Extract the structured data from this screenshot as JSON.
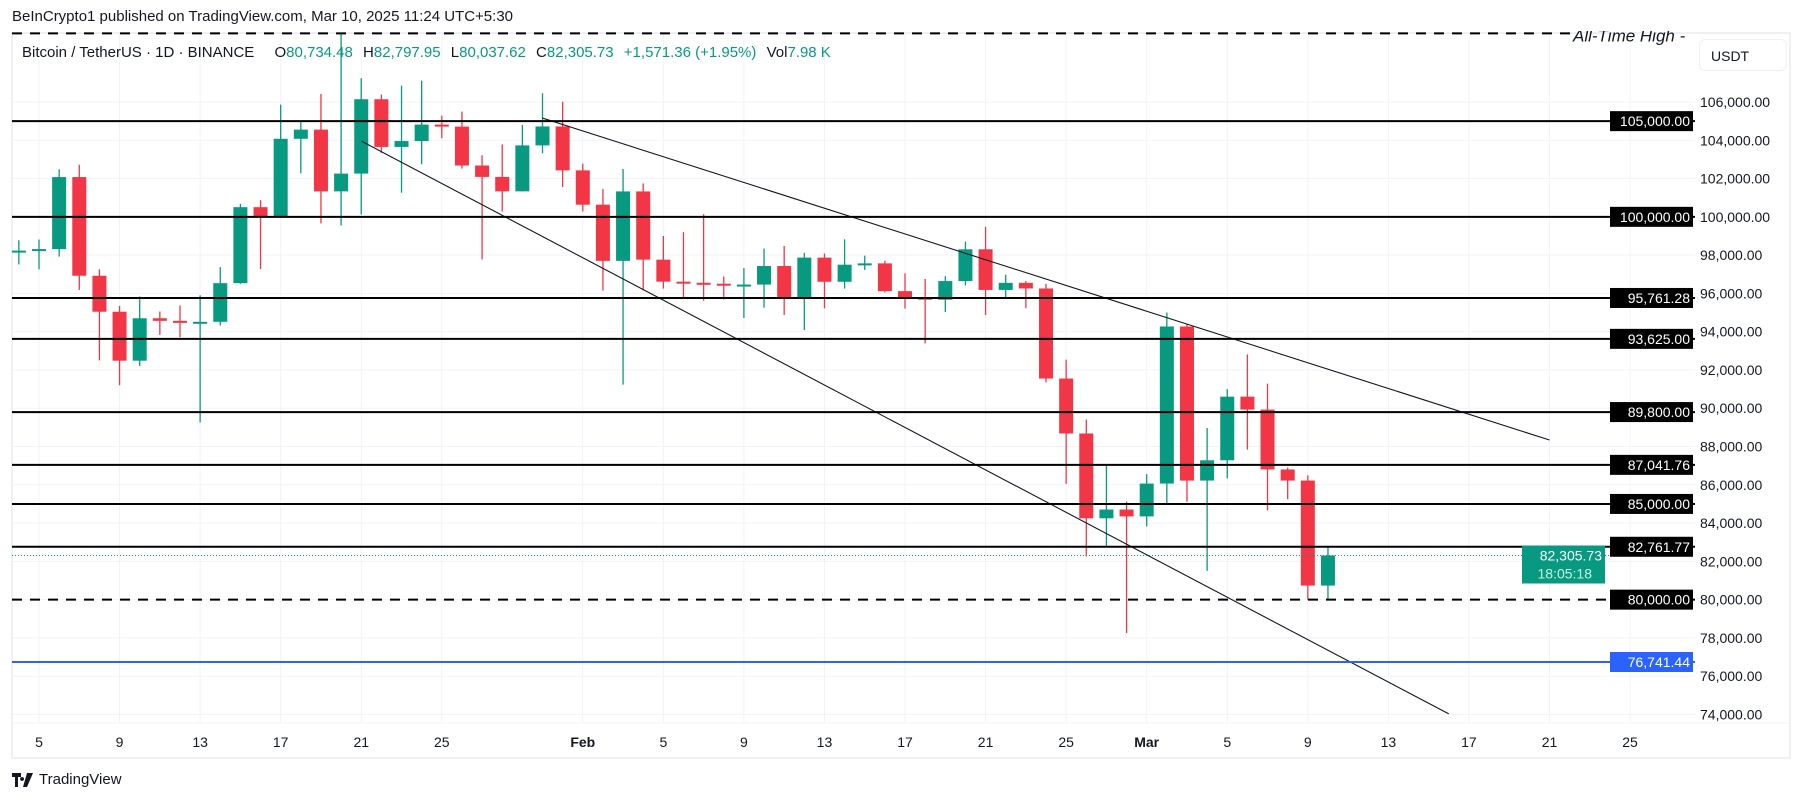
{
  "published": "BeInCrypto1 published on TradingView.com, Mar 10, 2025 11:24 UTC+5:30",
  "legend": {
    "symbol": "Bitcoin / TetherUS · 1D · BINANCE",
    "o_label": "O",
    "o": "80,734.48",
    "h_label": "H",
    "h": "82,797.95",
    "l_label": "L",
    "l": "80,037.62",
    "c_label": "C",
    "c": "82,305.73",
    "change": "+1,571.36 (+1.95%)",
    "vol_label": "Vol",
    "vol": "7.98 K"
  },
  "currency": "USDT",
  "brand": "TradingView",
  "colors": {
    "up": "#089981",
    "down": "#f23645",
    "support_blue": "#2962ff",
    "level": "#000000"
  },
  "chart_data": {
    "type": "candlestick",
    "title": "",
    "ylim": [
      73000,
      110000
    ],
    "grid": true,
    "y_ticks": [
      74000,
      76000,
      78000,
      80000,
      82000,
      84000,
      86000,
      88000,
      90000,
      92000,
      94000,
      96000,
      98000,
      100000,
      102000,
      104000,
      106000
    ],
    "y_tick_labels": [
      "74,000.00",
      "76,000.00",
      "78,000.00",
      "80,000.00",
      "82,000.00",
      "84,000.00",
      "86,000.00",
      "88,000.00",
      "90,000.00",
      "92,000.00",
      "94,000.00",
      "96,000.00",
      "98,000.00",
      "100,000.00",
      "102,000.00",
      "104,000.00",
      "106,000.00"
    ],
    "x_ticks": [
      {
        "date": "2025-01-05",
        "label": "5"
      },
      {
        "date": "2025-01-09",
        "label": "9"
      },
      {
        "date": "2025-01-13",
        "label": "13"
      },
      {
        "date": "2025-01-17",
        "label": "17"
      },
      {
        "date": "2025-01-21",
        "label": "21"
      },
      {
        "date": "2025-01-25",
        "label": "25"
      },
      {
        "date": "2025-02-01",
        "label": "Feb",
        "bold": true
      },
      {
        "date": "2025-02-05",
        "label": "5"
      },
      {
        "date": "2025-02-09",
        "label": "9"
      },
      {
        "date": "2025-02-13",
        "label": "13"
      },
      {
        "date": "2025-02-17",
        "label": "17"
      },
      {
        "date": "2025-02-21",
        "label": "21"
      },
      {
        "date": "2025-02-25",
        "label": "25"
      },
      {
        "date": "2025-03-01",
        "label": "Mar",
        "bold": true
      },
      {
        "date": "2025-03-05",
        "label": "5"
      },
      {
        "date": "2025-03-09",
        "label": "9"
      },
      {
        "date": "2025-03-13",
        "label": "13"
      },
      {
        "date": "2025-03-17",
        "label": "17"
      },
      {
        "date": "2025-03-21",
        "label": "21"
      },
      {
        "date": "2025-03-25",
        "label": "25"
      }
    ],
    "candles": [
      [
        "2025-01-04",
        98134,
        98778,
        97514,
        98236
      ],
      [
        "2025-01-05",
        98236,
        98813,
        97258,
        98314
      ],
      [
        "2025-01-06",
        98314,
        102482,
        97926,
        102078
      ],
      [
        "2025-01-07",
        102078,
        102724,
        96181,
        96922
      ],
      [
        "2025-01-08",
        96923,
        97259,
        92500,
        95043
      ],
      [
        "2025-01-09",
        95043,
        95349,
        91203,
        92484
      ],
      [
        "2025-01-10",
        92484,
        95837,
        92206,
        94701
      ],
      [
        "2025-01-11",
        94701,
        95050,
        93831,
        94566
      ],
      [
        "2025-01-12",
        94566,
        95375,
        93712,
        94488
      ],
      [
        "2025-01-13",
        94488,
        95900,
        89256,
        94516
      ],
      [
        "2025-01-14",
        94517,
        97371,
        94322,
        96534
      ],
      [
        "2025-01-15",
        96535,
        100681,
        96500,
        100505
      ],
      [
        "2025-01-16",
        100505,
        100873,
        97268,
        99988
      ],
      [
        "2025-01-17",
        99988,
        105865,
        99950,
        104078
      ],
      [
        "2025-01-18",
        104078,
        104988,
        102277,
        104557
      ],
      [
        "2025-01-19",
        104557,
        106422,
        99651,
        101331
      ],
      [
        "2025-01-20",
        101331,
        109588,
        99550,
        102260
      ],
      [
        "2025-01-21",
        102260,
        107240,
        100119,
        106144
      ],
      [
        "2025-01-22",
        106144,
        106394,
        103339,
        103653
      ],
      [
        "2025-01-23",
        103653,
        106850,
        101262,
        103960
      ],
      [
        "2025-01-24",
        103960,
        107120,
        102750,
        104820
      ],
      [
        "2025-01-25",
        104820,
        105286,
        104106,
        104714
      ],
      [
        "2025-01-26",
        104713,
        105500,
        102520,
        102682
      ],
      [
        "2025-01-27",
        102682,
        103221,
        97777,
        102087
      ],
      [
        "2025-01-28",
        102087,
        103784,
        100273,
        101332
      ],
      [
        "2025-01-29",
        101332,
        104800,
        101328,
        103733
      ],
      [
        "2025-01-30",
        103733,
        106457,
        103320,
        104722
      ],
      [
        "2025-01-31",
        104722,
        106012,
        101560,
        102429
      ],
      [
        "2025-02-01",
        102429,
        102783,
        100279,
        100635
      ],
      [
        "2025-02-02",
        100636,
        101456,
        96150,
        97700
      ],
      [
        "2025-02-03",
        97700,
        102500,
        91231,
        101328
      ],
      [
        "2025-02-04",
        101328,
        101745,
        96150,
        97763
      ],
      [
        "2025-02-05",
        97763,
        99000,
        96251,
        96613
      ],
      [
        "2025-02-06",
        96613,
        99199,
        95707,
        96554
      ],
      [
        "2025-02-07",
        96554,
        100137,
        95620,
        96506
      ],
      [
        "2025-02-08",
        96506,
        96880,
        95689,
        96444
      ],
      [
        "2025-02-09",
        96444,
        97323,
        94713,
        96462
      ],
      [
        "2025-02-10",
        96462,
        98345,
        95256,
        97430
      ],
      [
        "2025-02-11",
        97430,
        98478,
        94876,
        95778
      ],
      [
        "2025-02-12",
        95778,
        98119,
        94088,
        97870
      ],
      [
        "2025-02-13",
        97870,
        98083,
        95217,
        96608
      ],
      [
        "2025-02-14",
        96608,
        98826,
        96252,
        97500
      ],
      [
        "2025-02-15",
        97500,
        97972,
        97223,
        97569
      ],
      [
        "2025-02-16",
        97569,
        97704,
        96046,
        96118
      ],
      [
        "2025-02-17",
        96118,
        97046,
        95205,
        95780
      ],
      [
        "2025-02-18",
        95780,
        96753,
        93388,
        95671
      ],
      [
        "2025-02-19",
        95671,
        96899,
        95029,
        96644
      ],
      [
        "2025-02-20",
        96644,
        98711,
        96415,
        98305
      ],
      [
        "2025-02-21",
        98305,
        99475,
        94871,
        96181
      ],
      [
        "2025-02-22",
        96181,
        96980,
        95770,
        96551
      ],
      [
        "2025-02-23",
        96551,
        96650,
        95227,
        96258
      ],
      [
        "2025-02-24",
        96258,
        96500,
        91350,
        91552
      ],
      [
        "2025-02-25",
        91552,
        92540,
        86050,
        88680
      ],
      [
        "2025-02-26",
        88680,
        89414,
        82256,
        84250
      ],
      [
        "2025-02-27",
        84250,
        87078,
        82716,
        84708
      ],
      [
        "2025-02-28",
        84708,
        85120,
        78258,
        84349
      ],
      [
        "2025-03-01",
        84349,
        86558,
        83824,
        86064
      ],
      [
        "2025-03-02",
        86064,
        95000,
        85050,
        94270
      ],
      [
        "2025-03-03",
        94270,
        94416,
        85117,
        86220
      ],
      [
        "2025-03-04",
        86221,
        88967,
        81500,
        87281
      ],
      [
        "2025-03-05",
        87281,
        91000,
        86334,
        90606
      ],
      [
        "2025-03-06",
        90606,
        92810,
        87836,
        89931
      ],
      [
        "2025-03-07",
        89931,
        91283,
        84667,
        86801
      ],
      [
        "2025-03-08",
        86801,
        86897,
        85248,
        86222
      ],
      [
        "2025-03-09",
        86222,
        86500,
        80000,
        80734
      ],
      [
        "2025-03-10",
        80734,
        82797.95,
        80037.62,
        82305.73
      ]
    ],
    "levels": [
      {
        "price": 105000,
        "label": "105,000.00",
        "style": "solid",
        "color": "#000000"
      },
      {
        "price": 100000,
        "label": "100,000.00",
        "style": "solid",
        "color": "#000000"
      },
      {
        "price": 95761.28,
        "label": "95,761.28",
        "style": "solid",
        "color": "#000000"
      },
      {
        "price": 93625,
        "label": "93,625.00",
        "style": "solid",
        "color": "#000000"
      },
      {
        "price": 89800,
        "label": "89,800.00",
        "style": "solid",
        "color": "#000000"
      },
      {
        "price": 87041.76,
        "label": "87,041.76",
        "style": "solid",
        "color": "#000000"
      },
      {
        "price": 85000,
        "label": "85,000.00",
        "style": "solid",
        "color": "#000000"
      },
      {
        "price": 82761.77,
        "label": "82,761.77",
        "style": "solid",
        "color": "#000000"
      },
      {
        "price": 80000,
        "label": "80,000.00",
        "style": "dashed",
        "color": "#000000"
      },
      {
        "price": 76741.44,
        "label": "76,741.44",
        "style": "solid",
        "color": "#2962ff"
      }
    ],
    "ath": {
      "price": 109588,
      "label": "All-Time High"
    },
    "current_price": {
      "price": 82305.73,
      "label": "82,305.73",
      "countdown": "18:05:18"
    },
    "trendlines": [
      {
        "from": [
          "2025-01-30",
          105160
        ],
        "to": [
          "2025-03-21",
          88340
        ]
      },
      {
        "from": [
          "2025-01-21",
          103960
        ],
        "to": [
          "2025-03-16",
          74030
        ]
      }
    ]
  }
}
